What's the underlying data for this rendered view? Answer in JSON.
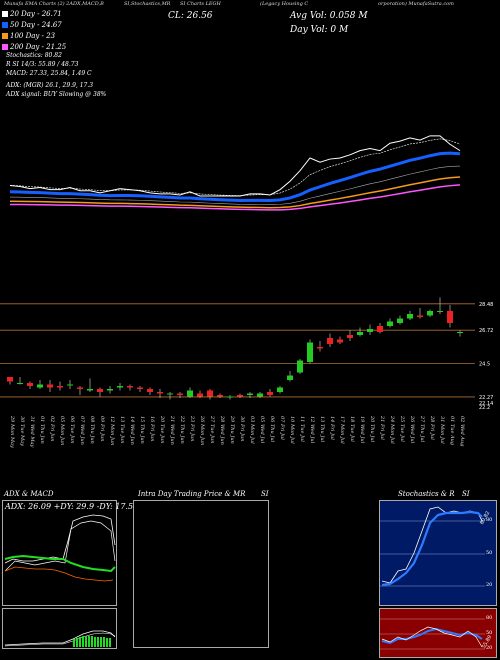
{
  "header": {
    "left": "Munafa EMA Charts (2) 2ADX,MACD,B",
    "mid": "SI,Stochastics,MR",
    "mid2": "SI Charts LEGH",
    "right1": "(Legacy Housing C",
    "right2": "orporation) MunafaSutra.com"
  },
  "ema_legend": {
    "ema20": "20  Day - 26.71",
    "ema50": "50  Day - 24.67",
    "ema100": "100  Day - 23",
    "ema200": "200  Day - 21.25",
    "colors": {
      "ema20": "#ffffff",
      "ema50": "#1560ff",
      "ema100": "#f59a1a",
      "ema200": "#ff55ff"
    }
  },
  "close_label": "CL: 26.56",
  "avg_vol": "Avg Vol: 0.058  M",
  "day_vol": "Day Vol: 0  M",
  "indicators": {
    "stoch": "Stochastics: 80.82",
    "rsi": "R          SI 14/3: 55.89 / 48.73",
    "macd": "MACD: 27.33, 25.84, 1.49 C",
    "adx": "ADX:                                 (MGR) 26.1, 29.9, 17.3",
    "adx_signal": "ADX  signal:                                      BUY Slowing @ 38%"
  },
  "price_levels": [
    "28.48",
    "26.72",
    "24.5",
    "22.27",
    "22.14",
    "22.2"
  ],
  "dates": [
    "29 Mon May",
    "30 Tue May",
    "31 Wed May",
    "01 Thu Jun",
    "02 Fri Jun",
    "05 Mon Jun",
    "06 Tue Jun",
    "07 Wed Jun",
    "08 Thu Jun",
    "09 Fri Jun",
    "12 Mon Jun",
    "13 Tue Jun",
    "14 Wed Jun",
    "15 Thu Jun",
    "16 Fri Jun",
    "20 Tue Jun",
    "21 Wed Jun",
    "22 Thu Jun",
    "23 Fri Jun",
    "26 Mon Jun",
    "27 Tue Jun",
    "28 Wed Jun",
    "29 Thu Jun",
    "30 Fri Jun",
    "03 Mon Jul",
    "05 Wed Jul",
    "06 Thu Jul",
    "07 Fri Jul",
    "10 Mon Jul",
    "11 Tue Jul",
    "12 Wed Jul",
    "13 Thu Jul",
    "14 Fri Jul",
    "17 Mon Jul",
    "18 Tue Jul",
    "19 Wed Jul",
    "20 Thu Jul",
    "21 Fri Jul",
    "24 Mon Jul",
    "25 Tue Jul",
    "26 Wed Jul",
    "27 Thu Jul",
    "28 Fri Jul",
    "31 Mon Jul",
    "01 Tue Aug",
    "02 Wed Aug"
  ],
  "panels": {
    "adx_title": "ADX  & MACD",
    "adx_values": "ADX: 26.09  +DY: 29.9  -DY: 17.53",
    "intra_title": "Intra  Day Trading Price  & MR",
    "intra_si": "SI",
    "stoch_title": "Stochastics & R",
    "stoch_si": "SI",
    "stoch_ticks": [
      "80",
      "50",
      "20"
    ],
    "rsi_ticks": [
      "80",
      "50",
      "20"
    ],
    "stoch_val": "80.82",
    "rsi_val": "55.89"
  },
  "chart_data": {
    "type": "candlestick",
    "title": "",
    "categories": [
      "29 May",
      "30 May",
      "31 May",
      "01 Jun",
      "02 Jun",
      "05 Jun",
      "06 Jun",
      "07 Jun",
      "08 Jun",
      "09 Jun",
      "12 Jun",
      "13 Jun",
      "14 Jun",
      "15 Jun",
      "16 Jun",
      "20 Jun",
      "21 Jun",
      "22 Jun",
      "23 Jun",
      "26 Jun",
      "27 Jun",
      "28 Jun",
      "29 Jun",
      "30 Jun",
      "03 Jul",
      "05 Jul",
      "06 Jul",
      "07 Jul",
      "10 Jul",
      "11 Jul",
      "12 Jul",
      "13 Jul",
      "14 Jul",
      "17 Jul",
      "18 Jul",
      "19 Jul",
      "20 Jul",
      "21 Jul",
      "24 Jul",
      "25 Jul",
      "26 Jul",
      "27 Jul",
      "28 Jul",
      "31 Jul",
      "01 Aug",
      "02 Aug"
    ],
    "series": [
      {
        "name": "open",
        "values": [
          23.6,
          23.2,
          23.2,
          22.9,
          23.1,
          23.0,
          23.1,
          22.9,
          22.7,
          22.8,
          22.7,
          22.9,
          23.0,
          22.9,
          22.8,
          22.6,
          22.5,
          22.5,
          22.3,
          22.5,
          22.7,
          22.4,
          22.3,
          22.4,
          22.4,
          22.3,
          22.6,
          22.6,
          23.4,
          23.9,
          24.6,
          25.6,
          26.2,
          26.1,
          26.4,
          26.4,
          26.6,
          27.0,
          27.0,
          27.2,
          27.5,
          27.7,
          27.7,
          28.0,
          28.0,
          26.6
        ]
      },
      {
        "name": "close",
        "values": [
          23.3,
          23.2,
          23.0,
          23.1,
          22.9,
          22.9,
          23.1,
          22.8,
          22.8,
          22.6,
          22.8,
          23.0,
          22.9,
          22.8,
          22.6,
          22.5,
          22.5,
          22.4,
          22.7,
          22.3,
          22.3,
          22.3,
          22.3,
          22.3,
          22.5,
          22.5,
          22.4,
          22.9,
          23.7,
          24.7,
          25.9,
          25.5,
          25.8,
          25.9,
          26.2,
          26.6,
          26.8,
          26.6,
          27.3,
          27.5,
          27.8,
          27.6,
          28.0,
          28.0,
          27.2,
          26.6
        ]
      },
      {
        "name": "high",
        "values": [
          23.6,
          23.6,
          23.3,
          23.4,
          23.4,
          23.3,
          23.4,
          23.0,
          23.5,
          22.9,
          23.0,
          23.2,
          23.1,
          23.0,
          22.9,
          22.8,
          22.6,
          22.6,
          22.9,
          22.7,
          22.8,
          22.5,
          22.4,
          22.5,
          22.6,
          22.6,
          22.8,
          23.0,
          24.0,
          24.8,
          26.1,
          26.0,
          26.5,
          26.3,
          26.7,
          26.9,
          27.1,
          27.2,
          27.5,
          27.7,
          28.0,
          28.2,
          28.1,
          28.9,
          28.4,
          26.7
        ]
      },
      {
        "name": "low",
        "values": [
          23.1,
          23.1,
          22.8,
          22.8,
          22.6,
          22.7,
          22.8,
          22.4,
          22.6,
          22.3,
          22.5,
          22.7,
          22.7,
          22.6,
          22.4,
          22.2,
          22.1,
          22.2,
          22.2,
          22.2,
          22.1,
          22.2,
          22.1,
          22.2,
          22.2,
          22.2,
          22.3,
          22.5,
          23.3,
          23.8,
          24.5,
          25.3,
          25.6,
          25.8,
          26.0,
          26.3,
          26.4,
          26.5,
          26.9,
          27.1,
          27.4,
          27.5,
          27.6,
          27.8,
          26.9,
          26.3
        ]
      }
    ],
    "ylim": [
      21.4,
      29.4
    ]
  }
}
